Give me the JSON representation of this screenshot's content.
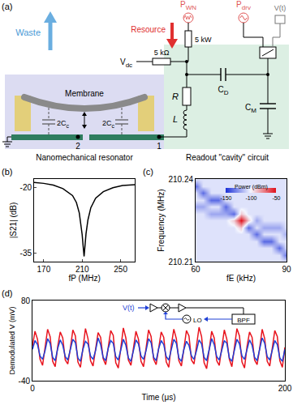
{
  "diagram": {
    "panel": "(a)",
    "labels": {
      "waste": {
        "text": "Waste"
      },
      "membrane": {
        "text": "Membrane"
      },
      "cap_left": {
        "text": "2C",
        "sub": "c"
      },
      "cap_right": {
        "text": "2C",
        "sub": "c"
      },
      "node2": {
        "text": "2"
      },
      "node1": {
        "text": "1"
      },
      "resonator": {
        "text": "Nanomechanical resonator"
      },
      "readout": {
        "text": "Readout \"cavity\" circuit"
      },
      "resource": {
        "text": "Resource"
      },
      "p_wn": {
        "text": "P",
        "sub": "WN"
      },
      "p_drv": {
        "text": "P",
        "sub": "drv"
      },
      "v_t": {
        "text": "V(t)"
      },
      "v_dc": {
        "text": "V",
        "sub": "dc"
      },
      "r_bias": {
        "text": "5 kΩ"
      },
      "r_source": {
        "text": "5 kW"
      },
      "r": {
        "text": "R"
      },
      "l": {
        "text": "L"
      },
      "c_d": {
        "text": "C",
        "sub": "D"
      },
      "c_m": {
        "text": "C",
        "sub": "M"
      }
    }
  },
  "chart_data": [
    {
      "panel": "(b)",
      "type": "line",
      "x_label": "fP (MHz)",
      "y_label": "|S21| (dB)",
      "color": "#000000",
      "grid": false,
      "x": [
        160,
        170,
        180,
        190,
        200,
        204,
        207,
        209,
        210,
        211,
        212,
        213,
        214,
        216,
        219,
        224,
        232,
        242,
        252,
        265
      ],
      "values": [
        -18.8,
        -19.0,
        -19.4,
        -20.2,
        -21.8,
        -23.4,
        -25.8,
        -28.6,
        -30.8,
        -33.4,
        -35.8,
        -33.2,
        -30.6,
        -27.4,
        -24.6,
        -22.4,
        -20.9,
        -20.0,
        -19.5,
        -19.3
      ],
      "xlim": [
        160,
        265
      ],
      "xticks": [
        170,
        210,
        250
      ],
      "ylim": [
        -37,
        -18
      ],
      "yticks": [
        -20,
        -35
      ]
    },
    {
      "panel": "(c)",
      "type": "heatmap",
      "x_label": "fE (kHz)",
      "y_label": "Frequency (MHz)",
      "grid": false,
      "x": [
        60,
        62.5,
        65,
        67.5,
        70,
        72.5,
        75,
        77.5,
        80,
        82.5,
        85,
        87.5,
        90
      ],
      "y": [
        210.21,
        210.2125,
        210.215,
        210.2175,
        210.22,
        210.2225,
        210.225,
        210.2275,
        210.23,
        210.2325,
        210.235,
        210.2375,
        210.24
      ],
      "z": [
        [
          -105,
          -105,
          -105,
          -105,
          -105,
          -105,
          -105,
          -105,
          -105,
          -105,
          -105,
          -105,
          -105
        ],
        [
          -105,
          -105,
          -105,
          -105,
          -105,
          -105,
          -105,
          -105,
          -105,
          -105,
          -105,
          -105,
          -135
        ],
        [
          -105,
          -105,
          -105,
          -105,
          -105,
          -105,
          -105,
          -105,
          -105,
          -105,
          -105,
          -135,
          -105
        ],
        [
          -105,
          -105,
          -105,
          -105,
          -105,
          -105,
          -105,
          -105,
          -105,
          -135,
          -135,
          -105,
          -105
        ],
        [
          -105,
          -105,
          -105,
          -105,
          -105,
          -105,
          -105,
          -105,
          -135,
          -105,
          -105,
          -105,
          -120
        ],
        [
          -105,
          -105,
          -105,
          -105,
          -105,
          -105,
          -90,
          -135,
          -105,
          -120,
          -120,
          -120,
          -105
        ],
        [
          -105,
          -105,
          -105,
          -105,
          -105,
          -90,
          -50,
          -90,
          -120,
          -105,
          -105,
          -105,
          -105
        ],
        [
          -105,
          -105,
          -120,
          -120,
          -120,
          -135,
          -90,
          -105,
          -105,
          -105,
          -105,
          -105,
          -105
        ],
        [
          -120,
          -120,
          -105,
          -105,
          -135,
          -105,
          -105,
          -105,
          -105,
          -105,
          -105,
          -105,
          -105
        ],
        [
          -105,
          -105,
          -135,
          -135,
          -105,
          -105,
          -105,
          -105,
          -105,
          -105,
          -105,
          -105,
          -105
        ],
        [
          -105,
          -135,
          -105,
          -105,
          -105,
          -105,
          -105,
          -105,
          -105,
          -105,
          -105,
          -105,
          -105
        ],
        [
          -135,
          -105,
          -105,
          -105,
          -105,
          -105,
          -105,
          -105,
          -105,
          -105,
          -105,
          -105,
          -105
        ],
        [
          -105,
          -105,
          -105,
          -105,
          -105,
          -105,
          -105,
          -105,
          -105,
          -105,
          -105,
          -105,
          -105
        ]
      ],
      "colorbar": {
        "title": "Power (dBm)",
        "range": [
          -150,
          -50
        ],
        "ticks": [
          -150,
          -100,
          -50
        ]
      },
      "xlim": [
        60,
        90
      ],
      "xticks": [
        60,
        90
      ],
      "ylim": [
        210.21,
        210.24
      ],
      "yticks": [
        210.21,
        210.24
      ]
    },
    {
      "panel": "(d)",
      "type": "line",
      "x_label": "Time (μs)",
      "y_label": "Demodulated V (mV)",
      "grid": false,
      "annotations": [
        "V(t)",
        "LO",
        "BPF"
      ],
      "x": [
        0,
        2,
        4,
        6,
        8,
        10,
        12,
        14,
        16,
        18,
        20,
        22,
        24,
        26,
        28,
        30,
        32,
        34,
        36,
        38,
        40,
        42,
        44,
        46,
        48,
        50,
        52,
        54,
        56,
        58,
        60,
        62,
        64,
        66,
        68,
        70,
        72,
        74,
        76,
        78,
        80,
        82,
        84,
        86,
        88,
        90,
        92,
        94,
        96,
        98,
        100,
        102,
        104,
        106,
        108,
        110,
        112,
        114,
        116,
        118,
        120,
        122,
        124,
        126,
        128,
        130,
        132,
        134,
        136,
        138,
        140,
        142,
        144,
        146,
        148,
        150,
        152,
        154,
        156,
        158,
        160,
        162,
        164,
        166,
        168,
        170,
        172,
        174,
        176,
        178,
        180,
        182,
        184,
        186,
        188,
        190,
        192,
        194,
        196,
        198,
        200
      ],
      "series": [
        {
          "color": "#e8141e",
          "values": [
            12,
            34,
            22,
            -8,
            -17,
            9,
            37,
            26,
            -11,
            -19,
            11,
            33,
            24,
            -9,
            -15,
            8,
            36,
            27,
            -12,
            -20,
            13,
            38,
            23,
            -10,
            -18,
            10,
            32,
            25,
            -7,
            -16,
            7,
            35,
            28,
            -13,
            -21,
            12,
            39,
            24,
            -9,
            -17,
            9,
            34,
            22,
            -11,
            -19,
            11,
            36,
            26,
            -8,
            -16,
            10,
            33,
            25,
            -12,
            -20,
            13,
            37,
            23,
            -10,
            -18,
            8,
            35,
            27,
            -9,
            -15,
            11,
            40,
            26,
            -13,
            -22,
            9,
            34,
            24,
            -10,
            -17,
            12,
            36,
            22,
            -8,
            -19,
            10,
            38,
            27,
            -12,
            -21,
            11,
            33,
            25,
            -9,
            -16,
            8,
            37,
            23,
            -11,
            -18,
            12,
            35,
            26,
            -10,
            -20,
            10
          ]
        },
        {
          "color": "#1f3fd6",
          "values": [
            7,
            20,
            14,
            -3,
            -8,
            5,
            23,
            16,
            -5,
            -10,
            8,
            21,
            13,
            -4,
            -9,
            6,
            22,
            17,
            -6,
            -11,
            7,
            19,
            15,
            -3,
            -8,
            5,
            24,
            14,
            -5,
            -10,
            8,
            20,
            16,
            -4,
            -9,
            6,
            22,
            13,
            -6,
            -11,
            7,
            21,
            15,
            -3,
            -8,
            5,
            23,
            17,
            -5,
            -10,
            8,
            20,
            14,
            -4,
            -9,
            6,
            22,
            16,
            -6,
            -11,
            7,
            19,
            13,
            -3,
            -8,
            5,
            21,
            15,
            -5,
            -10,
            8,
            23,
            14,
            -4,
            -9,
            6,
            20,
            16,
            -6,
            -11,
            7,
            22,
            15,
            -3,
            -8,
            5,
            21,
            13,
            -5,
            -10,
            8,
            24,
            16,
            -4,
            -9,
            6,
            20,
            14,
            -6,
            -11,
            7
          ]
        }
      ],
      "xlim": [
        0,
        200
      ],
      "xticks": [
        0,
        200
      ],
      "ylim": [
        -40,
        80
      ],
      "yticks": [
        -40,
        80
      ]
    }
  ]
}
